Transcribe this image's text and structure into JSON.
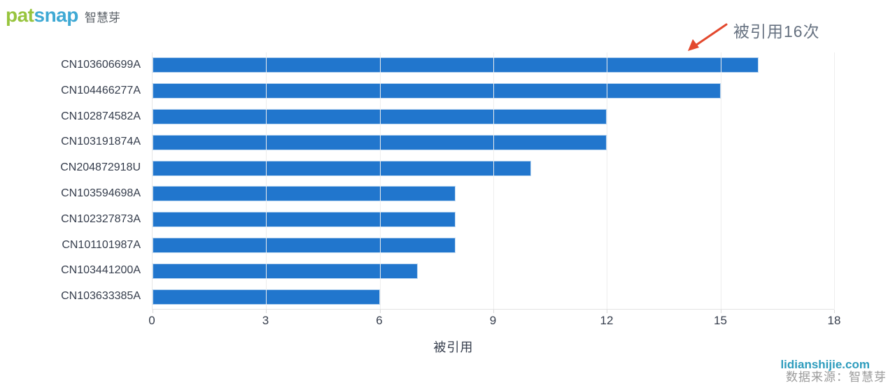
{
  "logo": {
    "part1": "pat",
    "part2": "snap",
    "suffix": "智慧芽",
    "colors": {
      "part1": "#97c43d",
      "part2": "#3fa9d4"
    }
  },
  "annotation": {
    "text": "被引用16次",
    "arrow_color": "#e3492e"
  },
  "chart_data": {
    "type": "bar",
    "orientation": "horizontal",
    "title": "",
    "categories": [
      "CN103606699A",
      "CN104466277A",
      "CN102874582A",
      "CN103191874A",
      "CN204872918U",
      "CN103594698A",
      "CN102327873A",
      "CN101101987A",
      "CN103441200A",
      "CN103633385A"
    ],
    "values": [
      16,
      15,
      12,
      12,
      10,
      8,
      8,
      8,
      7,
      6
    ],
    "xlabel": "被引用",
    "ylabel": "",
    "xlim": [
      0,
      18
    ],
    "xticks": [
      0,
      3,
      6,
      9,
      12,
      15,
      18
    ],
    "grid": true,
    "bar_color": "#2176cd"
  },
  "footer": {
    "watermark": "lidianshijie.com",
    "source": "数据来源：智慧芽"
  }
}
